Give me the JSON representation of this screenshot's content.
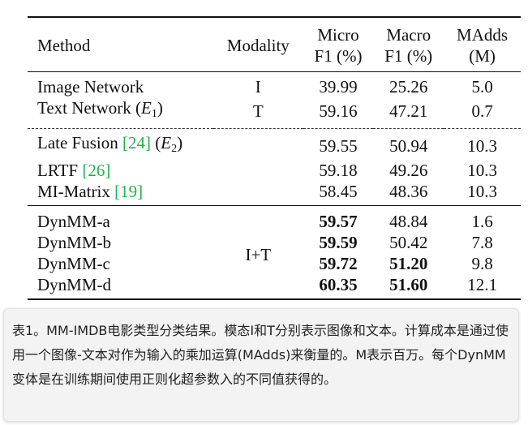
{
  "table": {
    "headers": {
      "method": "Method",
      "modality": "Modality",
      "micro_line1": "Micro",
      "micro_line2": "F1 (%)",
      "macro_line1": "Macro",
      "macro_line2": "F1 (%)",
      "madds_line1": "MAdds",
      "madds_line2": "(M)"
    },
    "group1": [
      {
        "method": "Image Network",
        "modality": "I",
        "micro": "39.99",
        "macro": "25.26",
        "madds": "5.0"
      },
      {
        "method": "Text Network (",
        "math": "E",
        "sub": "1",
        "tail": ")",
        "modality": "T",
        "micro": "59.16",
        "macro": "47.21",
        "madds": "0.7"
      }
    ],
    "group2": [
      {
        "method": "Late Fusion ",
        "cite": "[24]",
        "math": "E",
        "sub": "2",
        "micro": "59.55",
        "macro": "50.94",
        "madds": "10.3"
      },
      {
        "method": "LRTF ",
        "cite": "[26]",
        "micro": "59.18",
        "macro": "49.26",
        "madds": "10.3"
      },
      {
        "method": "MI-Matrix ",
        "cite": "[19]",
        "micro": "58.45",
        "macro": "48.36",
        "madds": "10.3"
      }
    ],
    "group3_modality": "I+T",
    "group3": [
      {
        "method": "DynMM-a",
        "micro": "59.57",
        "macro": "48.84",
        "madds": "1.6"
      },
      {
        "method": "DynMM-b",
        "micro": "59.59",
        "macro": "50.42",
        "madds": "7.8"
      },
      {
        "method": "DynMM-c",
        "micro": "59.72",
        "macro": "51.20",
        "madds": "9.8"
      },
      {
        "method": "DynMM-d",
        "micro": "60.35",
        "macro": "51.60",
        "madds": "12.1"
      }
    ]
  },
  "caption": {
    "text": "表1。MM-IMDB电影类型分类结果。模态I和T分别表示图像和文本。计算成本是通过使用一个图像-文本对作为输入的乘加运算(MAdds)来衡量的。M表示百万。每个DynMM变体是在训练期间使用正则化超参数入的不同值获得的。"
  }
}
